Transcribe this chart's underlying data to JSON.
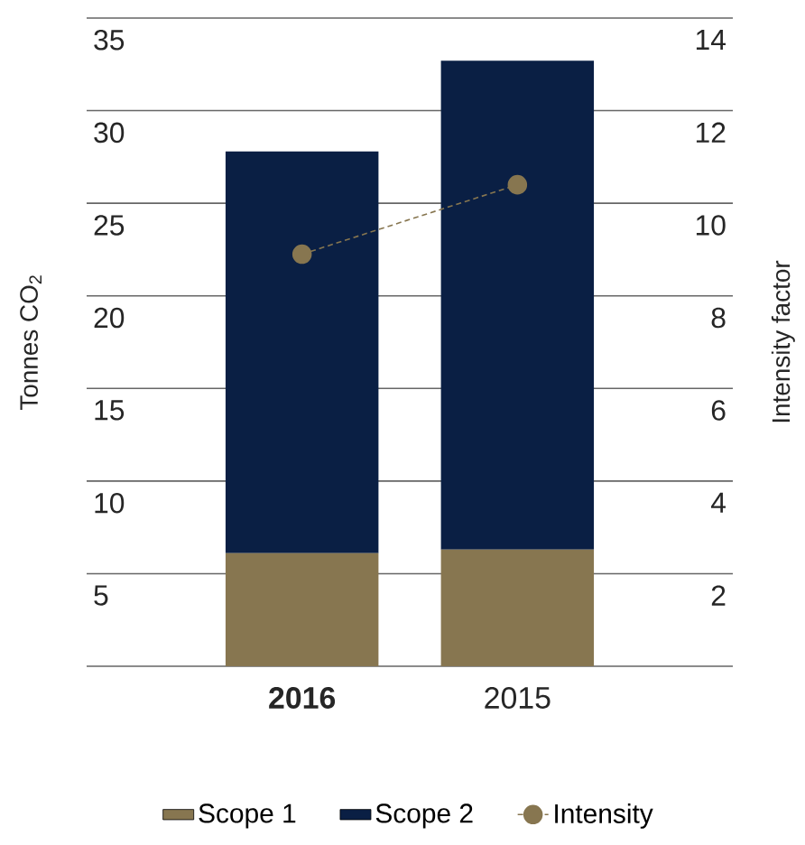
{
  "chart_data": {
    "type": "bar",
    "stacked": true,
    "categories": [
      "**2016**",
      "2015"
    ],
    "series": [
      {
        "name": "Scope 1",
        "color": "#877650",
        "values": [
          6.1,
          6.3
        ]
      },
      {
        "name": "Scope 2",
        "color": "#0a1f44",
        "values": [
          21.7,
          26.4
        ]
      },
      {
        "name": "Intensity",
        "type": "line",
        "axis": "y2",
        "color": "#877650",
        "marker": "circle",
        "line_style": "dashed",
        "values": [
          8.9,
          10.4
        ]
      }
    ],
    "ylabel": "Tonnes CO$_{2}$",
    "y2label": "Intensity factor",
    "ylim": [
      0,
      35
    ],
    "yticks": [
      {
        "value": 0,
        "label": null
      },
      5,
      10,
      15,
      20,
      25,
      30,
      35
    ],
    "y2lim": [
      0,
      14
    ],
    "y2ticks": [
      2,
      4,
      6,
      8,
      10,
      12,
      14
    ],
    "grid": "y",
    "legend": "bottom"
  }
}
